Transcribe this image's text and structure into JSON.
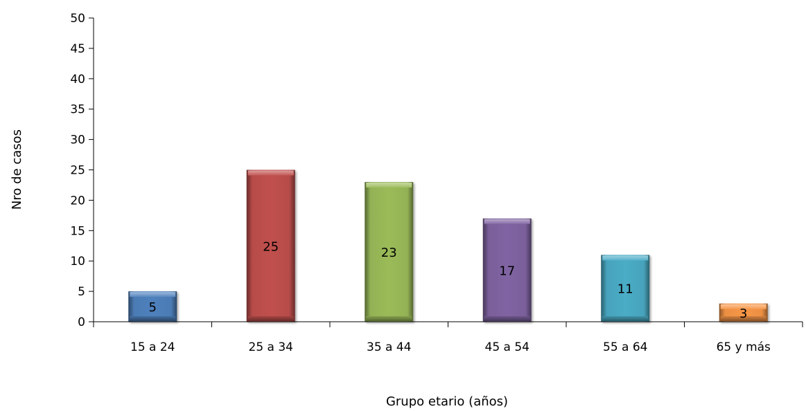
{
  "chart_data": {
    "type": "bar",
    "title": "",
    "xlabel": "Grupo etario (años)",
    "ylabel": "Nro de casos",
    "categories": [
      "15 a 24",
      "25 a 34",
      "35 a 44",
      "45 a 54",
      "55 a 64",
      "65 y más"
    ],
    "values": [
      5,
      25,
      23,
      17,
      11,
      3
    ],
    "colors": [
      "#4f81bd",
      "#c0504d",
      "#9bbb59",
      "#8064a2",
      "#4bacc6",
      "#f79646"
    ],
    "ylim": [
      0,
      50
    ],
    "yticks": [
      0,
      5,
      10,
      15,
      20,
      25,
      30,
      35,
      40,
      45,
      50
    ],
    "grid": false,
    "legend": "none",
    "data_labels": [
      "5",
      "25",
      "23",
      "17",
      "11",
      "3"
    ]
  }
}
